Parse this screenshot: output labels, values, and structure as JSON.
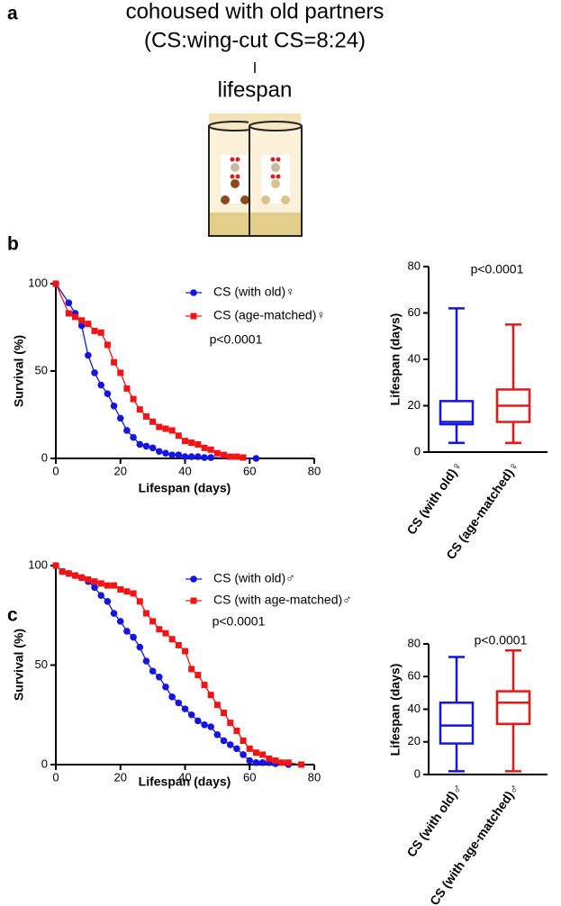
{
  "panel_labels": [
    "a",
    "b",
    "c"
  ],
  "header": {
    "lines": [
      "cohoused with old partners",
      "(CS:wing-cut CS=8:24)",
      "lifespan"
    ]
  },
  "chart_data": [
    {
      "type": "line",
      "xlabel": "Lifespan (days)",
      "ylabel": "Survival (%)",
      "annotation": "p<0.0001",
      "xlim": [
        0,
        80
      ],
      "xticks": [
        0,
        20,
        40,
        60,
        80
      ],
      "ylim": [
        0,
        100
      ],
      "yticks": [
        0,
        50,
        100
      ],
      "series": [
        {
          "name": "CS (with old)♀",
          "color": "#1515e0",
          "marker": "circle",
          "x": [
            0,
            4,
            6,
            8,
            10,
            12,
            14,
            16,
            18,
            20,
            22,
            24,
            26,
            28,
            30,
            32,
            34,
            36,
            38,
            40,
            42,
            44,
            46,
            48,
            62
          ],
          "values": [
            100,
            89,
            83,
            76,
            59,
            49,
            42,
            37,
            30,
            23,
            16,
            12,
            8,
            7,
            6,
            4,
            3,
            2,
            2,
            1,
            1,
            1,
            0.5,
            0.5,
            0
          ]
        },
        {
          "name": "CS (age-matched)♀",
          "color": "#f01414",
          "marker": "square",
          "x": [
            0,
            4,
            6,
            8,
            10,
            12,
            14,
            16,
            18,
            20,
            22,
            24,
            26,
            28,
            30,
            32,
            34,
            36,
            38,
            40,
            42,
            44,
            46,
            48,
            50,
            52,
            54,
            56,
            58
          ],
          "values": [
            100,
            83,
            81,
            79,
            77,
            73,
            72,
            65,
            55,
            49,
            40,
            34,
            28,
            24,
            21,
            18,
            17,
            16,
            13,
            10,
            9,
            8,
            6,
            5,
            3,
            2,
            1,
            1,
            0.5
          ]
        }
      ]
    },
    {
      "type": "box",
      "ylabel": "Lifespan (days)",
      "annotation": "p<0.0001",
      "ylim": [
        0,
        80
      ],
      "yticks": [
        0,
        20,
        40,
        60,
        80
      ],
      "categories": [
        "CS (with old)♀",
        "CS (age-matched)♀"
      ],
      "boxes": [
        {
          "color": "#1515e0",
          "min": 4,
          "q1": 12,
          "median": 13,
          "q3": 22,
          "max": 62
        },
        {
          "color": "#f01414",
          "min": 4,
          "q1": 13,
          "median": 20,
          "q3": 27,
          "max": 55
        }
      ]
    },
    {
      "type": "line",
      "xlabel": "Lifespan (days)",
      "ylabel": "Survival (%)",
      "annotation": "p<0.0001",
      "xlim": [
        0,
        80
      ],
      "xticks": [
        0,
        20,
        40,
        60,
        80
      ],
      "ylim": [
        0,
        100
      ],
      "yticks": [
        0,
        50,
        100
      ],
      "series": [
        {
          "name": "CS (with old)♂",
          "color": "#1515e0",
          "marker": "circle",
          "x": [
            0,
            2,
            4,
            6,
            8,
            10,
            12,
            14,
            16,
            18,
            20,
            22,
            24,
            26,
            28,
            30,
            32,
            34,
            36,
            38,
            40,
            42,
            44,
            46,
            48,
            50,
            52,
            54,
            56,
            58,
            60,
            62,
            64,
            66,
            68,
            72
          ],
          "values": [
            100,
            97,
            96,
            95,
            94,
            92,
            89,
            85,
            82,
            76,
            72,
            67,
            64,
            59,
            52,
            47,
            44,
            39,
            34,
            31,
            28,
            25,
            22,
            20,
            19,
            15,
            12,
            10,
            8,
            5,
            2,
            1,
            1,
            1,
            0.5,
            0
          ]
        },
        {
          "name": "CS (with age-matched)♂",
          "color": "#f01414",
          "marker": "square",
          "x": [
            0,
            2,
            4,
            6,
            8,
            10,
            12,
            14,
            16,
            18,
            20,
            22,
            24,
            26,
            28,
            30,
            32,
            34,
            36,
            38,
            40,
            42,
            44,
            46,
            48,
            50,
            52,
            54,
            56,
            58,
            60,
            62,
            64,
            66,
            68,
            70,
            72,
            76
          ],
          "values": [
            100,
            97,
            96,
            95,
            94,
            93,
            92,
            91,
            90,
            90,
            88,
            87,
            86,
            82,
            76,
            72,
            68,
            66,
            63,
            60,
            57,
            48,
            45,
            40,
            35,
            30,
            26,
            21,
            17,
            12,
            8,
            6,
            5,
            3,
            2,
            1,
            1,
            0
          ]
        }
      ]
    },
    {
      "type": "box",
      "ylabel": "Lifespan (days)",
      "annotation": "p<0.0001",
      "ylim": [
        0,
        80
      ],
      "yticks": [
        0,
        20,
        40,
        60,
        80
      ],
      "categories": [
        "CS (with old)♂",
        "CS (with age-matched)♂"
      ],
      "boxes": [
        {
          "color": "#1515e0",
          "min": 2,
          "q1": 19,
          "median": 30,
          "q3": 44,
          "max": 72
        },
        {
          "color": "#f01414",
          "min": 2,
          "q1": 31,
          "median": 44,
          "q3": 51,
          "max": 76
        }
      ]
    }
  ]
}
